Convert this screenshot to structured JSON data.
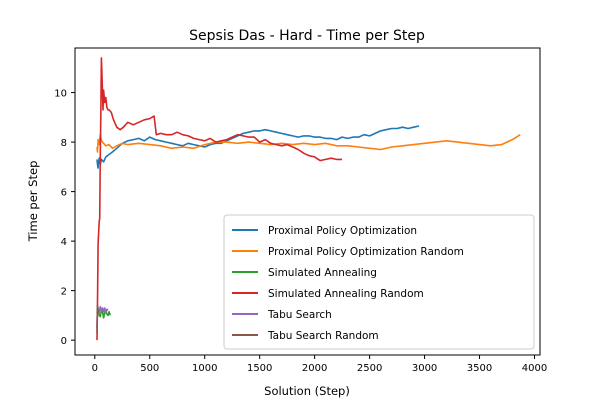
{
  "chart_data": {
    "type": "line",
    "title": "Sepsis Das - Hard - Time per Step",
    "xlabel": "Solution (Step)",
    "ylabel": "Time per Step",
    "xlim": [
      -180,
      4050
    ],
    "ylim": [
      -0.6,
      11.8
    ],
    "xticks": [
      0,
      500,
      1000,
      1500,
      2000,
      2500,
      3000,
      3500,
      4000
    ],
    "yticks": [
      0,
      2,
      4,
      6,
      8,
      10
    ],
    "grid": false,
    "legend_position": "lower-right",
    "series": [
      {
        "name": "Proximal Policy Optimization",
        "color": "#1f77b4",
        "x": [
          20,
          25,
          30,
          35,
          40,
          50,
          60,
          80,
          100,
          130,
          160,
          200,
          250,
          300,
          350,
          400,
          450,
          500,
          550,
          600,
          650,
          700,
          750,
          800,
          850,
          900,
          950,
          1000,
          1050,
          1100,
          1150,
          1200,
          1250,
          1300,
          1350,
          1400,
          1450,
          1500,
          1550,
          1600,
          1650,
          1700,
          1750,
          1800,
          1850,
          1900,
          1950,
          2000,
          2050,
          2100,
          2150,
          2200,
          2250,
          2300,
          2350,
          2400,
          2450,
          2500,
          2550,
          2600,
          2650,
          2700,
          2750,
          2800,
          2850,
          2900,
          2950
        ],
        "y": [
          7.3,
          7.1,
          6.95,
          7.2,
          7.35,
          7.1,
          7.3,
          7.2,
          7.4,
          7.5,
          7.6,
          7.75,
          7.95,
          8.05,
          8.1,
          8.15,
          8.05,
          8.2,
          8.1,
          8.05,
          8.0,
          7.95,
          7.9,
          7.85,
          7.95,
          7.9,
          7.85,
          7.8,
          7.9,
          7.95,
          7.95,
          8.05,
          8.15,
          8.25,
          8.35,
          8.4,
          8.45,
          8.45,
          8.5,
          8.45,
          8.4,
          8.35,
          8.3,
          8.25,
          8.2,
          8.25,
          8.25,
          8.2,
          8.2,
          8.15,
          8.15,
          8.1,
          8.2,
          8.15,
          8.2,
          8.2,
          8.3,
          8.25,
          8.35,
          8.45,
          8.5,
          8.55,
          8.55,
          8.6,
          8.55,
          8.6,
          8.65
        ]
      },
      {
        "name": "Proximal Policy Optimization Random",
        "color": "#ff7f0e",
        "x": [
          20,
          25,
          30,
          40,
          50,
          60,
          80,
          100,
          130,
          160,
          200,
          250,
          300,
          400,
          500,
          600,
          700,
          800,
          900,
          1000,
          1100,
          1200,
          1300,
          1400,
          1500,
          1600,
          1700,
          1800,
          1900,
          2000,
          2100,
          2200,
          2300,
          2400,
          2500,
          2600,
          2700,
          2800,
          2900,
          3000,
          3100,
          3200,
          3300,
          3400,
          3500,
          3600,
          3700,
          3800,
          3870
        ],
        "y": [
          7.8,
          7.6,
          8.1,
          7.9,
          8.3,
          8.05,
          7.95,
          7.85,
          7.9,
          7.75,
          7.85,
          7.95,
          7.9,
          7.95,
          7.9,
          7.85,
          7.75,
          7.8,
          7.75,
          7.9,
          8.0,
          8.0,
          7.95,
          8.0,
          7.95,
          7.9,
          7.95,
          7.9,
          7.95,
          7.9,
          7.95,
          7.85,
          7.85,
          7.8,
          7.75,
          7.7,
          7.8,
          7.85,
          7.9,
          7.95,
          8.0,
          8.05,
          8.0,
          7.95,
          7.9,
          7.85,
          7.9,
          8.1,
          8.3
        ]
      },
      {
        "name": "Simulated Annealing",
        "color": "#2ca02c",
        "x": [
          20,
          30,
          40,
          50,
          60,
          70,
          80,
          90,
          100,
          110,
          120,
          130,
          140
        ],
        "y": [
          1.1,
          1.3,
          1.0,
          0.95,
          1.2,
          1.15,
          0.9,
          1.1,
          1.2,
          1.05,
          1.0,
          1.15,
          1.0
        ]
      },
      {
        "name": "Simulated Annealing Random",
        "color": "#d62728",
        "x": [
          20,
          25,
          30,
          35,
          40,
          45,
          50,
          55,
          60,
          65,
          70,
          75,
          80,
          90,
          100,
          110,
          120,
          130,
          150,
          170,
          200,
          230,
          260,
          300,
          350,
          400,
          450,
          500,
          540,
          560,
          600,
          650,
          700,
          750,
          800,
          850,
          900,
          950,
          1000,
          1050,
          1100,
          1150,
          1200,
          1250,
          1300,
          1350,
          1400,
          1450,
          1500,
          1550,
          1600,
          1650,
          1700,
          1750,
          1800,
          1850,
          1900,
          1950,
          2000,
          2050,
          2100,
          2150,
          2200,
          2250
        ],
        "y": [
          0.0,
          1.5,
          3.9,
          4.3,
          4.8,
          4.9,
          7.5,
          9.0,
          11.4,
          10.8,
          10.0,
          9.3,
          10.1,
          9.6,
          9.8,
          9.4,
          9.3,
          9.3,
          9.2,
          8.9,
          8.6,
          8.5,
          8.6,
          8.8,
          8.7,
          8.8,
          8.9,
          8.95,
          9.05,
          8.3,
          8.35,
          8.3,
          8.3,
          8.4,
          8.3,
          8.25,
          8.15,
          8.1,
          8.05,
          8.15,
          8.0,
          8.05,
          8.1,
          8.2,
          8.3,
          8.25,
          8.2,
          8.2,
          8.0,
          8.1,
          7.95,
          7.9,
          7.85,
          7.9,
          7.8,
          7.7,
          7.55,
          7.45,
          7.4,
          7.25,
          7.3,
          7.35,
          7.3,
          7.3
        ]
      },
      {
        "name": "Tabu Search",
        "color": "#9467bd",
        "x": [
          20,
          25,
          30,
          40,
          50,
          60,
          70,
          80,
          90,
          100,
          110,
          120
        ],
        "y": [
          0.5,
          1.4,
          1.2,
          1.1,
          1.35,
          1.2,
          1.3,
          1.15,
          1.3,
          1.1,
          1.25,
          1.2
        ]
      },
      {
        "name": "Tabu Search Random",
        "color": "#8c564b",
        "x": [
          20,
          22,
          25,
          28,
          30
        ],
        "y": [
          0.3,
          0.9,
          1.4,
          1.1,
          1.2
        ]
      }
    ]
  }
}
